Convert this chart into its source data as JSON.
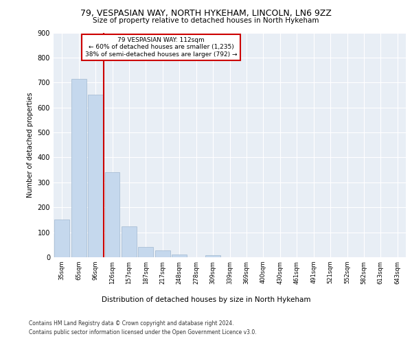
{
  "title1": "79, VESPASIAN WAY, NORTH HYKEHAM, LINCOLN, LN6 9ZZ",
  "title2": "Size of property relative to detached houses in North Hykeham",
  "xlabel": "Distribution of detached houses by size in North Hykeham",
  "ylabel": "Number of detached properties",
  "annotation_line1": "79 VESPASIAN WAY: 112sqm",
  "annotation_line2": "← 60% of detached houses are smaller (1,235)",
  "annotation_line3": "38% of semi-detached houses are larger (792) →",
  "footer1": "Contains HM Land Registry data © Crown copyright and database right 2024.",
  "footer2": "Contains public sector information licensed under the Open Government Licence v3.0.",
  "categories": [
    "35sqm",
    "65sqm",
    "96sqm",
    "126sqm",
    "157sqm",
    "187sqm",
    "217sqm",
    "248sqm",
    "278sqm",
    "309sqm",
    "339sqm",
    "369sqm",
    "400sqm",
    "430sqm",
    "461sqm",
    "491sqm",
    "521sqm",
    "552sqm",
    "582sqm",
    "613sqm",
    "643sqm"
  ],
  "values": [
    150,
    715,
    650,
    340,
    125,
    40,
    28,
    10,
    0,
    8,
    0,
    0,
    0,
    0,
    0,
    0,
    0,
    0,
    0,
    0,
    0
  ],
  "bar_color": "#c5d8ed",
  "bar_edge_color": "#a0b8d0",
  "vline_x": 2.5,
  "vline_color": "#cc0000",
  "annotation_box_color": "#cc0000",
  "background_color": "#e8eef5",
  "ylim": [
    0,
    900
  ],
  "yticks": [
    0,
    100,
    200,
    300,
    400,
    500,
    600,
    700,
    800,
    900
  ]
}
